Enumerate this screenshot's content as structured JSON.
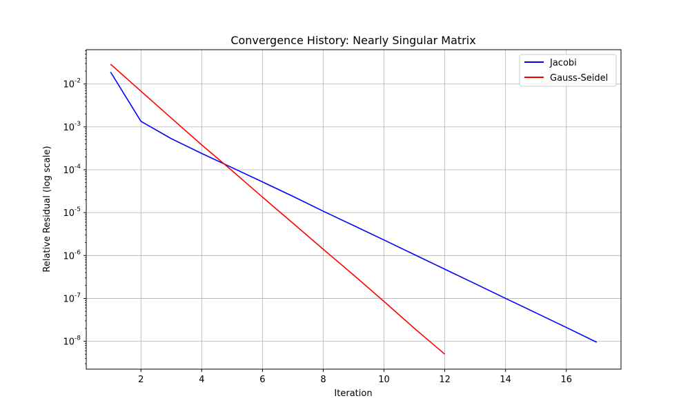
{
  "chart_data": {
    "type": "line",
    "title": "Convergence History: Nearly Singular Matrix",
    "xlabel": "Iteration",
    "ylabel": "Relative Residual (log scale)",
    "xlim": [
      0.2,
      17.8
    ],
    "ylim_log10": [
      -8.65,
      -1.2
    ],
    "y_scale": "log",
    "grid": true,
    "legend_position": "top-right",
    "x_ticks": [
      2,
      4,
      6,
      8,
      10,
      12,
      14,
      16
    ],
    "x_tick_labels": [
      "2",
      "4",
      "6",
      "8",
      "10",
      "12",
      "14",
      "16"
    ],
    "y_ticks": [
      1e-08,
      1e-07,
      1e-06,
      1e-05,
      0.0001,
      0.001,
      0.01
    ],
    "y_tick_exponents": [
      "-8",
      "-7",
      "-6",
      "-5",
      "-4",
      "-3",
      "-2"
    ],
    "y_tick_base": "10",
    "series": [
      {
        "name": "Jacobi",
        "color": "#0000ff",
        "x": [
          1,
          2,
          3,
          4,
          5,
          6,
          7,
          8,
          9,
          10,
          11,
          12,
          13,
          14,
          15,
          16,
          17
        ],
        "y": [
          0.019,
          0.00135,
          0.00053,
          0.00024,
          0.000112,
          5.2e-05,
          2.4e-05,
          1.08e-05,
          5e-06,
          2.3e-06,
          1.05e-06,
          4.8e-07,
          2.2e-07,
          1e-07,
          4.6e-08,
          2.1e-08,
          9.5e-09
        ]
      },
      {
        "name": "Gauss-Seidel",
        "color": "#ff0000",
        "x": [
          1,
          2,
          3,
          4,
          5,
          6,
          7,
          8,
          9,
          10,
          11,
          12
        ],
        "y": [
          0.029,
          0.0068,
          0.0016,
          0.00038,
          9.5e-05,
          2.3e-05,
          5.7e-06,
          1.4e-06,
          3.5e-07,
          8.5e-08,
          2e-08,
          5e-09
        ]
      }
    ]
  }
}
